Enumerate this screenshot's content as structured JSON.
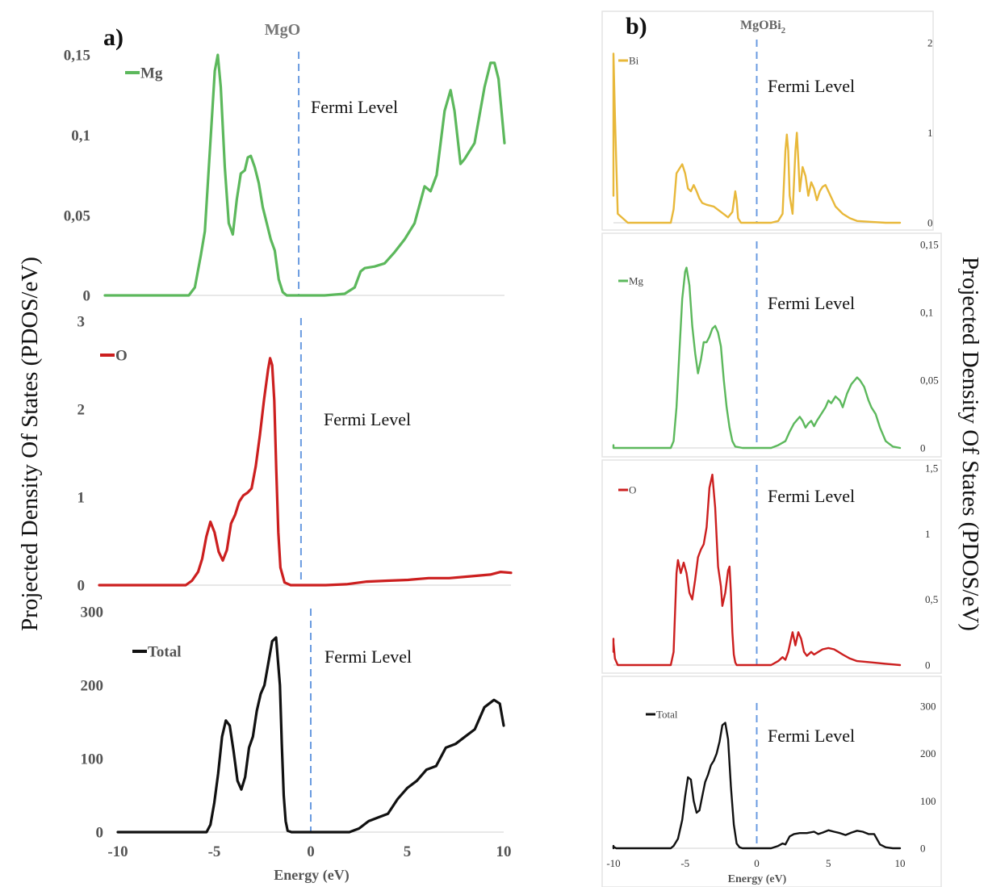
{
  "figure": {
    "left_panel": {
      "letter": "a)",
      "title": "MgO"
    },
    "right_panel": {
      "letter": "b)",
      "title_main": "MgOBi",
      "title_sub": "2"
    },
    "left_ylabel": "Projected Density Of States (PDOS/eV)",
    "right_ylabel": "Projected Density Of States (PDOS/eV)",
    "xlabel": "Energy (eV)",
    "fermi_label": "Fermi Level",
    "colors": {
      "Mg": "#5cb85c",
      "O": "#cc1f1f",
      "Bi": "#e8b83a",
      "Total": "#111111",
      "fermi": "#6a9be0"
    }
  },
  "chart_data": [
    {
      "type": "line",
      "panel": "a",
      "legend": "Mg",
      "color": "#5cb85c",
      "xlim": [
        -10,
        10
      ],
      "ylim": [
        0,
        0.15
      ],
      "yticks": [
        0,
        0.05,
        0.1,
        0.15
      ],
      "yticklabels": [
        "0",
        "0,05",
        "0,1",
        "0,15"
      ],
      "fermi": -0.3,
      "x": [
        -10,
        -5.8,
        -5.5,
        -5.2,
        -5.0,
        -4.7,
        -4.5,
        -4.35,
        -4.2,
        -4.0,
        -3.8,
        -3.6,
        -3.4,
        -3.2,
        -3.0,
        -2.85,
        -2.7,
        -2.5,
        -2.3,
        -2.1,
        -1.9,
        -1.7,
        -1.5,
        -1.3,
        -1.1,
        -0.9,
        -0.6,
        -0.2,
        1.0,
        2.0,
        2.5,
        2.8,
        3.0,
        3.5,
        4.0,
        4.5,
        5.0,
        5.5,
        6.0,
        6.3,
        6.6,
        7.0,
        7.3,
        7.5,
        7.8,
        8.0,
        8.5,
        9.0,
        9.3,
        9.5,
        9.7,
        10.0
      ],
      "y": [
        0,
        0,
        0.005,
        0.025,
        0.04,
        0.1,
        0.14,
        0.15,
        0.13,
        0.08,
        0.045,
        0.038,
        0.06,
        0.076,
        0.078,
        0.086,
        0.087,
        0.08,
        0.07,
        0.055,
        0.045,
        0.035,
        0.028,
        0.01,
        0.002,
        0,
        0,
        0,
        0,
        0.001,
        0.005,
        0.015,
        0.017,
        0.018,
        0.02,
        0.027,
        0.035,
        0.045,
        0.068,
        0.065,
        0.075,
        0.115,
        0.128,
        0.115,
        0.082,
        0.085,
        0.095,
        0.13,
        0.145,
        0.145,
        0.135,
        0.095
      ]
    },
    {
      "type": "line",
      "panel": "a",
      "legend": "O",
      "color": "#cc1f1f",
      "xlim": [
        -10,
        10
      ],
      "ylim": [
        0,
        3
      ],
      "yticks": [
        0,
        1,
        2,
        3
      ],
      "yticklabels": [
        "0",
        "1",
        "2",
        "3"
      ],
      "fermi": -0.2,
      "x": [
        -10,
        -5.8,
        -5.5,
        -5.2,
        -5.0,
        -4.8,
        -4.6,
        -4.4,
        -4.2,
        -4.0,
        -3.8,
        -3.6,
        -3.4,
        -3.2,
        -3.0,
        -2.8,
        -2.6,
        -2.4,
        -2.2,
        -2.0,
        -1.8,
        -1.7,
        -1.6,
        -1.5,
        -1.4,
        -1.3,
        -1.2,
        -1.0,
        -0.7,
        0,
        1.0,
        2.0,
        3.0,
        4.0,
        5.0,
        6.0,
        7.0,
        8.0,
        9.0,
        9.5,
        10.0
      ],
      "y": [
        0,
        0,
        0.05,
        0.15,
        0.3,
        0.55,
        0.72,
        0.6,
        0.38,
        0.28,
        0.4,
        0.7,
        0.8,
        0.95,
        1.02,
        1.05,
        1.1,
        1.35,
        1.7,
        2.1,
        2.45,
        2.58,
        2.5,
        2.1,
        1.3,
        0.6,
        0.2,
        0.03,
        0,
        0,
        0,
        0.01,
        0.04,
        0.05,
        0.06,
        0.08,
        0.08,
        0.1,
        0.12,
        0.15,
        0.14
      ]
    },
    {
      "type": "line",
      "panel": "a",
      "legend": "Total",
      "color": "#111111",
      "xlim": [
        -10,
        10
      ],
      "ylim": [
        0,
        300
      ],
      "yticks": [
        0,
        100,
        200,
        300
      ],
      "yticklabels": [
        "0",
        "100",
        "200",
        "300"
      ],
      "fermi": 0,
      "x": [
        -10,
        -5.4,
        -5.2,
        -5.0,
        -4.8,
        -4.6,
        -4.4,
        -4.2,
        -4.0,
        -3.8,
        -3.6,
        -3.4,
        -3.2,
        -3.0,
        -2.8,
        -2.6,
        -2.4,
        -2.2,
        -2.0,
        -1.8,
        -1.6,
        -1.5,
        -1.4,
        -1.3,
        -1.2,
        -1.0,
        -0.8,
        0,
        2.0,
        2.5,
        3.0,
        3.5,
        4.0,
        4.5,
        5.0,
        5.5,
        6.0,
        6.5,
        7.0,
        7.5,
        8.0,
        8.5,
        9.0,
        9.5,
        9.8,
        10.0
      ],
      "y": [
        0,
        0,
        10,
        40,
        80,
        130,
        152,
        145,
        110,
        70,
        58,
        75,
        115,
        130,
        165,
        188,
        200,
        230,
        260,
        265,
        200,
        120,
        50,
        15,
        2,
        0,
        0,
        0,
        0,
        5,
        15,
        20,
        25,
        45,
        60,
        70,
        85,
        90,
        115,
        120,
        130,
        140,
        170,
        180,
        175,
        145
      ]
    },
    {
      "type": "line",
      "panel": "b",
      "legend": "Bi",
      "color": "#e8b83a",
      "xlim": [
        -10,
        10
      ],
      "ylim": [
        0,
        2
      ],
      "yticks": [
        0,
        1,
        2
      ],
      "yticklabels": [
        "0",
        "1",
        "2"
      ],
      "fermi": 0,
      "x": [
        -10.2,
        -10.1,
        -10.0,
        -9.9,
        -9.7,
        -9.0,
        -6.0,
        -5.8,
        -5.6,
        -5.4,
        -5.2,
        -5.0,
        -4.8,
        -4.6,
        -4.4,
        -4.2,
        -4.0,
        -3.8,
        -3.5,
        -3.0,
        -2.5,
        -2.0,
        -1.7,
        -1.5,
        -1.4,
        -1.3,
        -1.1,
        -1.0,
        0,
        1.0,
        1.5,
        1.8,
        2.0,
        2.1,
        2.2,
        2.3,
        2.5,
        2.7,
        2.8,
        2.9,
        3.0,
        3.2,
        3.4,
        3.6,
        3.8,
        4.0,
        4.2,
        4.4,
        4.6,
        4.8,
        5.0,
        5.5,
        6.0,
        6.5,
        7.0,
        8.0,
        9.0,
        10.0
      ],
      "y": [
        0.3,
        1.5,
        1.88,
        1.2,
        0.1,
        0,
        0,
        0.15,
        0.55,
        0.6,
        0.65,
        0.55,
        0.38,
        0.35,
        0.42,
        0.35,
        0.27,
        0.22,
        0.2,
        0.18,
        0.12,
        0.06,
        0.12,
        0.35,
        0.25,
        0.05,
        0,
        0,
        0,
        0,
        0.02,
        0.1,
        0.8,
        0.98,
        0.8,
        0.3,
        0.1,
        0.8,
        1.0,
        0.7,
        0.35,
        0.62,
        0.52,
        0.3,
        0.45,
        0.38,
        0.25,
        0.35,
        0.4,
        0.42,
        0.35,
        0.18,
        0.1,
        0.05,
        0.02,
        0.01,
        0,
        0
      ]
    },
    {
      "type": "line",
      "panel": "b",
      "legend": "Mg",
      "color": "#5cb85c",
      "xlim": [
        -10,
        10
      ],
      "ylim": [
        0,
        0.15
      ],
      "yticks": [
        0,
        0.05,
        0.1,
        0.15
      ],
      "yticklabels": [
        "0",
        "0,05",
        "0,1",
        "0,15"
      ],
      "fermi": 0,
      "x": [
        -10.5,
        -10.3,
        -10.0,
        -6.0,
        -5.8,
        -5.6,
        -5.4,
        -5.2,
        -5.0,
        -4.9,
        -4.7,
        -4.5,
        -4.3,
        -4.1,
        -3.9,
        -3.7,
        -3.5,
        -3.3,
        -3.1,
        -2.9,
        -2.7,
        -2.5,
        -2.3,
        -2.1,
        -1.9,
        -1.7,
        -1.5,
        -1.0,
        0,
        1.0,
        1.5,
        2.0,
        2.3,
        2.6,
        3.0,
        3.2,
        3.4,
        3.6,
        3.8,
        4.0,
        4.2,
        4.5,
        4.8,
        5.0,
        5.2,
        5.5,
        5.8,
        6.0,
        6.3,
        6.6,
        7.0,
        7.2,
        7.5,
        7.8,
        8.0,
        8.3,
        8.6,
        9.0,
        9.5,
        10.0
      ],
      "y": [
        0.002,
        0.002,
        0,
        0,
        0.005,
        0.03,
        0.07,
        0.11,
        0.13,
        0.133,
        0.12,
        0.09,
        0.07,
        0.055,
        0.065,
        0.078,
        0.078,
        0.082,
        0.088,
        0.09,
        0.085,
        0.075,
        0.05,
        0.03,
        0.015,
        0.005,
        0.001,
        0,
        0,
        0,
        0.002,
        0.005,
        0.012,
        0.018,
        0.023,
        0.02,
        0.015,
        0.018,
        0.02,
        0.016,
        0.02,
        0.025,
        0.03,
        0.035,
        0.033,
        0.038,
        0.035,
        0.03,
        0.04,
        0.047,
        0.052,
        0.05,
        0.045,
        0.035,
        0.03,
        0.025,
        0.015,
        0.005,
        0.001,
        0
      ]
    },
    {
      "type": "line",
      "panel": "b",
      "legend": "O",
      "color": "#cc1f1f",
      "xlim": [
        -10,
        10
      ],
      "ylim": [
        0,
        1.5
      ],
      "yticks": [
        0,
        0.5,
        1,
        1.5
      ],
      "yticklabels": [
        "0",
        "0,5",
        "1",
        "1,5"
      ],
      "fermi": 0,
      "x": [
        -10.3,
        -10.2,
        -10.1,
        -10.0,
        -9.9,
        -9.7,
        -6.0,
        -5.8,
        -5.6,
        -5.5,
        -5.3,
        -5.1,
        -4.9,
        -4.7,
        -4.5,
        -4.3,
        -4.1,
        -3.9,
        -3.7,
        -3.5,
        -3.3,
        -3.1,
        -2.9,
        -2.7,
        -2.5,
        -2.4,
        -2.2,
        -2.0,
        -1.9,
        -1.8,
        -1.7,
        -1.6,
        -1.5,
        -1.4,
        -1.3,
        -1.2,
        -1.0,
        0,
        1.0,
        1.5,
        1.8,
        2.0,
        2.2,
        2.5,
        2.7,
        2.9,
        3.1,
        3.3,
        3.5,
        3.8,
        4.0,
        4.3,
        4.6,
        5.0,
        5.4,
        5.7,
        6.0,
        6.5,
        7.0,
        8.0,
        9.0,
        10.0
      ],
      "y": [
        0.1,
        0.17,
        0.2,
        0.17,
        0.05,
        0,
        0,
        0.1,
        0.7,
        0.8,
        0.7,
        0.78,
        0.7,
        0.55,
        0.5,
        0.65,
        0.82,
        0.88,
        0.92,
        1.05,
        1.35,
        1.45,
        1.2,
        0.75,
        0.6,
        0.45,
        0.55,
        0.72,
        0.75,
        0.55,
        0.25,
        0.08,
        0.02,
        0,
        0,
        0,
        0,
        0,
        0,
        0.03,
        0.06,
        0.04,
        0.1,
        0.25,
        0.15,
        0.25,
        0.2,
        0.1,
        0.07,
        0.1,
        0.08,
        0.1,
        0.12,
        0.13,
        0.12,
        0.1,
        0.08,
        0.05,
        0.03,
        0.02,
        0.01,
        0
      ]
    },
    {
      "type": "line",
      "panel": "b",
      "legend": "Total",
      "color": "#111111",
      "xlim": [
        -10,
        10
      ],
      "ylim": [
        0,
        300
      ],
      "yticks": [
        0,
        100,
        200,
        300
      ],
      "yticklabels": [
        "0",
        "100",
        "200",
        "300"
      ],
      "fermi": 0,
      "x": [
        -10.5,
        -10.2,
        -10.0,
        -9.8,
        -9.5,
        -6.0,
        -5.8,
        -5.5,
        -5.2,
        -5.0,
        -4.8,
        -4.6,
        -4.4,
        -4.2,
        -4.0,
        -3.8,
        -3.6,
        -3.4,
        -3.2,
        -3.0,
        -2.8,
        -2.6,
        -2.4,
        -2.2,
        -2.0,
        -1.8,
        -1.6,
        -1.4,
        -1.2,
        -1.0,
        0,
        1.0,
        1.5,
        1.8,
        2.0,
        2.3,
        2.6,
        3.0,
        3.5,
        4.0,
        4.3,
        4.6,
        5.0,
        5.4,
        5.8,
        6.2,
        6.6,
        7.0,
        7.4,
        7.8,
        8.2,
        8.6,
        9.0,
        9.5,
        10.0
      ],
      "y": [
        0,
        5,
        3,
        0,
        0,
        0,
        5,
        20,
        60,
        110,
        150,
        145,
        100,
        75,
        80,
        110,
        140,
        155,
        175,
        185,
        200,
        225,
        260,
        265,
        230,
        130,
        50,
        10,
        2,
        0,
        0,
        0,
        5,
        10,
        8,
        25,
        30,
        32,
        32,
        35,
        30,
        33,
        38,
        35,
        32,
        28,
        33,
        37,
        35,
        30,
        30,
        8,
        2,
        0,
        0
      ]
    }
  ]
}
